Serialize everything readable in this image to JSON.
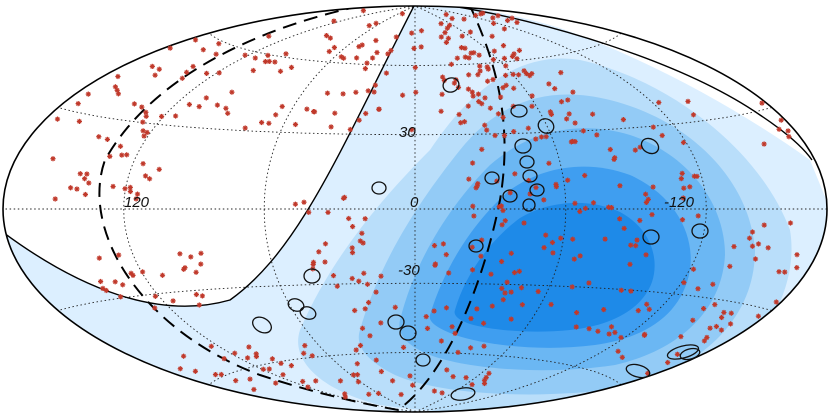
{
  "tick_labels": {
    "lon": [
      "120",
      "0",
      "-120"
    ],
    "lat": [
      "30",
      "-30"
    ]
  },
  "colors": {
    "exposure_bands": [
      "#dcefff",
      "#b9defa",
      "#93cbf6",
      "#6bb7f3",
      "#3f9ef0",
      "#1e8ae8"
    ],
    "events": "#c0392b",
    "sources": "#111111",
    "lines": "#000000",
    "grid": "#222222",
    "background": "#ffffff"
  },
  "projection": "hammer-aitoff",
  "marker_types": [
    "event-asterisk-icon",
    "source-circle-icon"
  ]
}
